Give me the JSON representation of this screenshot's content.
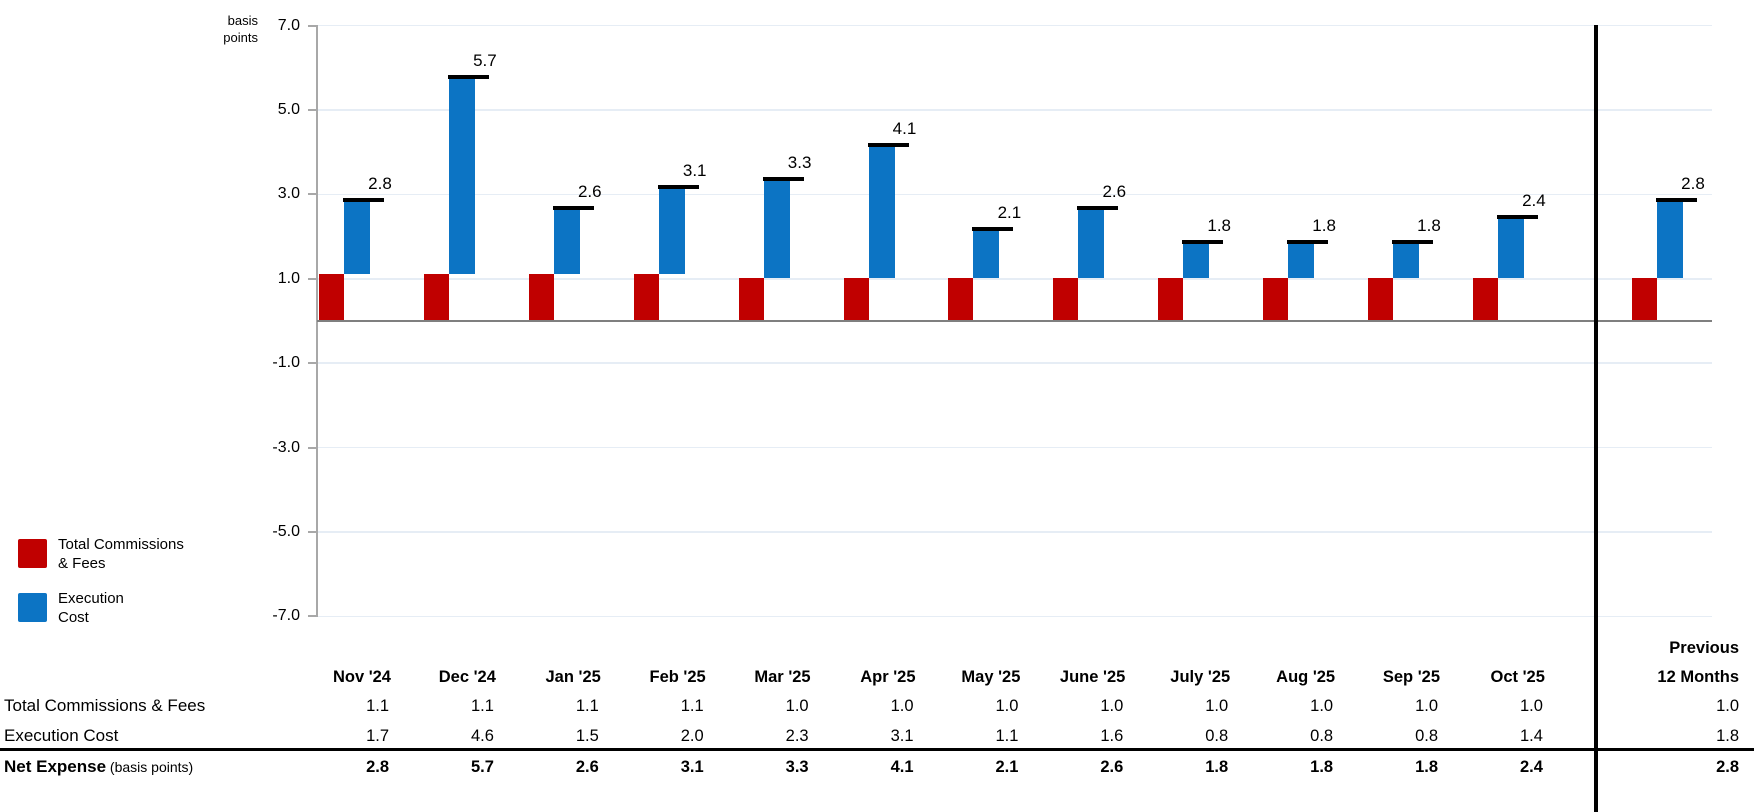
{
  "chart": {
    "axis_title_lines": [
      "basis",
      "points"
    ],
    "y_ticks": [
      "7.0",
      "5.0",
      "3.0",
      "1.0",
      "-1.0",
      "-3.0",
      "-5.0",
      "-7.0"
    ],
    "y_tick_values": [
      7,
      5,
      3,
      1,
      -1,
      -3,
      -5,
      -7
    ]
  },
  "colors": {
    "commissions": "#C00000",
    "execution": "#0C74C4",
    "total_marker": "#000000",
    "gridline": "#E6EDF5",
    "zero_line": "#7F7F7F",
    "axis_line": "#A8A8A8",
    "divider": "#000000"
  },
  "legend": {
    "items": [
      {
        "name": "Total Commissions & Fees",
        "label_lines": [
          "Total Commissions",
          "& Fees"
        ],
        "color": "#C00000"
      },
      {
        "name": "Execution Cost",
        "label_lines": [
          "Execution",
          "Cost"
        ],
        "color": "#0C74C4"
      }
    ]
  },
  "chart_data": {
    "type": "bar",
    "subtype": "stacked-waterfall-with-total-markers",
    "title": "",
    "ylabel": "basis points",
    "ylim": [
      -7.0,
      7.0
    ],
    "ytick_step": 2.0,
    "grid": true,
    "legend_position": "bottom-left",
    "categories": [
      "Nov '24",
      "Dec '24",
      "Jan '25",
      "Feb '25",
      "Mar '25",
      "Apr '25",
      "May '25",
      "June '25",
      "July '25",
      "Aug '25",
      "Sep '25",
      "Oct '25",
      "Previous 12 Months"
    ],
    "series": [
      {
        "name": "Total Commissions & Fees",
        "color": "#C00000",
        "values": [
          "1.1",
          "1.1",
          "1.1",
          "1.1",
          "1.0",
          "1.0",
          "1.0",
          "1.0",
          "1.0",
          "1.0",
          "1.0",
          "1.0",
          "1.0"
        ]
      },
      {
        "name": "Execution Cost",
        "color": "#0C74C4",
        "values": [
          "1.7",
          "4.6",
          "1.5",
          "2.0",
          "2.3",
          "3.1",
          "1.1",
          "1.6",
          "0.8",
          "0.8",
          "0.8",
          "1.4",
          "1.8"
        ]
      }
    ],
    "totals": {
      "name": "Net Expense",
      "unit": "basis points",
      "values": [
        "2.8",
        "5.7",
        "2.6",
        "3.1",
        "3.3",
        "4.1",
        "2.1",
        "2.6",
        "1.8",
        "1.8",
        "1.8",
        "2.4",
        "2.8"
      ]
    }
  },
  "table": {
    "month_columns": [
      "Nov '24",
      "Dec '24",
      "Jan '25",
      "Feb '25",
      "Mar '25",
      "Apr '25",
      "May '25",
      "June '25",
      "July '25",
      "Aug '25",
      "Sep '25",
      "Oct '25"
    ],
    "last_column_lines": [
      "Previous",
      "12 Months"
    ],
    "rows": [
      {
        "label": "Net Expense",
        "suffix": "(basis points)"
      }
    ],
    "row_labels": [
      "Total Commissions & Fees",
      "Execution Cost"
    ]
  }
}
